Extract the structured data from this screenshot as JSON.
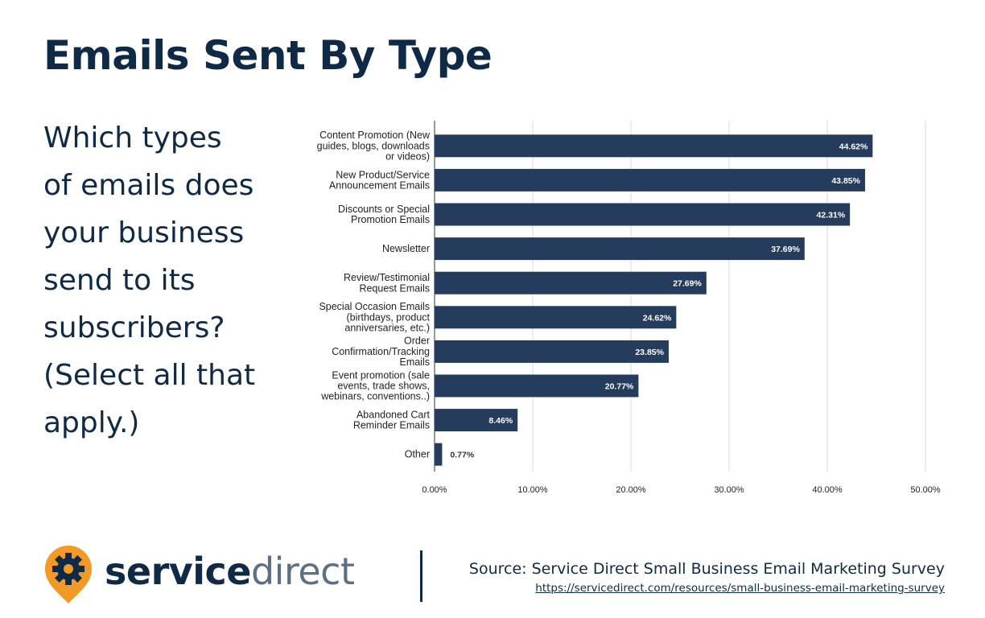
{
  "header": {
    "title": "Emails Sent By Type"
  },
  "question": "Which types\nof emails does\nyour business\nsend to its\nsubscribers?\n(Select all that\napply.)",
  "chart_data": {
    "type": "bar",
    "orientation": "horizontal",
    "categories": [
      [
        "Content Promotion (New",
        "guides, blogs, downloads",
        "or videos)"
      ],
      [
        "New Product/Service",
        "Announcement Emails"
      ],
      [
        "Discounts or Special",
        "Promotion Emails"
      ],
      [
        "Newsletter"
      ],
      [
        "Review/Testimonial",
        "Request Emails"
      ],
      [
        "Special Occasion Emails",
        "(birthdays, product",
        "anniversaries, etc.)"
      ],
      [
        "Order",
        "Confirmation/Tracking",
        "Emails"
      ],
      [
        "Event promotion (sale",
        "events, trade shows,",
        "webinars, conventions..)"
      ],
      [
        "Abandoned Cart",
        "Reminder Emails"
      ],
      [
        "Other"
      ]
    ],
    "values": [
      44.62,
      43.85,
      42.31,
      37.69,
      27.69,
      24.62,
      23.85,
      20.77,
      8.46,
      0.77
    ],
    "value_labels": [
      "44.62%",
      "43.85%",
      "42.31%",
      "37.69%",
      "27.69%",
      "24.62%",
      "23.85%",
      "20.77%",
      "8.46%",
      "0.77%"
    ],
    "xlim": [
      0,
      50
    ],
    "xticks": [
      0,
      10,
      20,
      30,
      40,
      50
    ],
    "xtick_labels": [
      "0.00%",
      "10.00%",
      "20.00%",
      "30.00%",
      "40.00%",
      "50.00%"
    ],
    "grid": "vertical",
    "colors": {
      "bar": "#263c5c",
      "label_inside": "#ffffff",
      "label_outside": "#333333",
      "grid": "#d9d9d9",
      "axis": "#333333"
    }
  },
  "footer": {
    "brand": {
      "part1": "service",
      "part2": "direct",
      "icon": "gear-pin-icon",
      "colors": {
        "pin": "#f39a26",
        "gear": "#0e2a47"
      }
    },
    "source": "Source: Service Direct Small Business Email Marketing Survey",
    "url": "https://servicedirect.com/resources/small-business-email-marketing-survey"
  }
}
